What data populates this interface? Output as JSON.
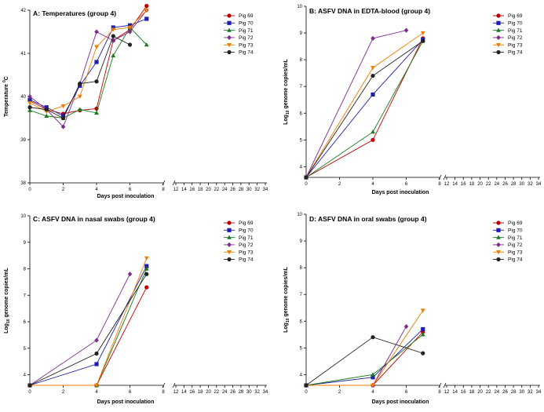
{
  "chart_data": [
    {
      "type": "line",
      "title": "A: Temperatures (group 4)",
      "xlabel": "Days post inoculation",
      "ylabel_main": "Temperature",
      "ylabel_unit": "°C",
      "ylim": [
        38,
        42
      ],
      "yticks": [
        "38",
        "39",
        "40",
        "41",
        "42"
      ],
      "xticks_left": [
        "0",
        "2",
        "4",
        "6",
        "8"
      ],
      "xticks_right": [
        "12",
        "14",
        "16",
        "18",
        "20",
        "22",
        "24",
        "26",
        "28",
        "30",
        "32",
        "34"
      ],
      "legend_position": "top-right",
      "series": [
        {
          "name": "Pig 69",
          "color": "#c00000",
          "marker": "circle",
          "x": [
            0,
            1,
            2,
            3,
            4,
            5,
            6,
            7
          ],
          "y": [
            39.9,
            39.7,
            39.6,
            39.68,
            39.72,
            41.3,
            41.55,
            42.1
          ]
        },
        {
          "name": "Pig 70",
          "color": "#1f1fa8",
          "marker": "square",
          "x": [
            0,
            1,
            2,
            3,
            4,
            5,
            6,
            7
          ],
          "y": [
            39.92,
            39.75,
            39.55,
            40.25,
            40.8,
            41.6,
            41.65,
            41.8
          ]
        },
        {
          "name": "Pig 71",
          "color": "#1a7a1a",
          "marker": "triangle-up",
          "x": [
            0,
            1,
            2,
            3,
            4,
            5,
            6,
            7
          ],
          "y": [
            39.68,
            39.55,
            39.5,
            39.7,
            39.62,
            40.95,
            41.6,
            41.2
          ]
        },
        {
          "name": "Pig 72",
          "color": "#7b2d8e",
          "marker": "diamond",
          "x": [
            0,
            1,
            2,
            3,
            4,
            5,
            6,
            7
          ],
          "y": [
            40.0,
            39.7,
            39.3,
            40.3,
            41.5,
            41.3,
            41.5,
            42.0
          ]
        },
        {
          "name": "Pig 73",
          "color": "#f07c00",
          "marker": "triangle-down",
          "x": [
            0,
            1,
            2,
            3,
            4,
            5,
            6,
            7
          ],
          "y": [
            39.85,
            39.65,
            39.78,
            40.0,
            41.15,
            41.55,
            41.6,
            42.0
          ]
        },
        {
          "name": "Pig 74",
          "color": "#222222",
          "marker": "circle",
          "x": [
            0,
            1,
            2,
            3,
            4,
            5,
            6
          ],
          "y": [
            39.75,
            39.7,
            39.5,
            40.3,
            40.35,
            41.4,
            41.2
          ]
        }
      ]
    },
    {
      "type": "line",
      "title": "B: ASFV DNA in EDTA-blood (group 4)",
      "xlabel": "Days post inoculation",
      "ylabel_main": "Log",
      "ylabel_sub": "10",
      "ylabel_rest": " genome copies/mL",
      "ylim": [
        3.6,
        10
      ],
      "yticks": [
        "4",
        "5",
        "6",
        "7",
        "8",
        "9",
        "10"
      ],
      "xticks_left": [
        "0",
        "2",
        "4",
        "6",
        "8"
      ],
      "xticks_right": [
        "12",
        "14",
        "16",
        "18",
        "20",
        "22",
        "24",
        "26",
        "28",
        "30",
        "32",
        "34"
      ],
      "legend_position": "top-right",
      "series": [
        {
          "name": "Pig 69",
          "color": "#c00000",
          "marker": "circle",
          "x": [
            0,
            4,
            7
          ],
          "y": [
            3.6,
            5.0,
            8.8
          ]
        },
        {
          "name": "Pig 70",
          "color": "#1f1fa8",
          "marker": "square",
          "x": [
            0,
            4,
            7
          ],
          "y": [
            3.6,
            6.7,
            8.75
          ]
        },
        {
          "name": "Pig 71",
          "color": "#1a7a1a",
          "marker": "triangle-up",
          "x": [
            0,
            4,
            7
          ],
          "y": [
            3.6,
            5.3,
            8.7
          ]
        },
        {
          "name": "Pig 72",
          "color": "#7b2d8e",
          "marker": "diamond",
          "x": [
            0,
            4,
            6
          ],
          "y": [
            3.6,
            8.8,
            9.1
          ]
        },
        {
          "name": "Pig 73",
          "color": "#f07c00",
          "marker": "triangle-down",
          "x": [
            0,
            4,
            7
          ],
          "y": [
            3.6,
            7.7,
            9.0
          ]
        },
        {
          "name": "Pig 74",
          "color": "#222222",
          "marker": "circle",
          "x": [
            0,
            4,
            7
          ],
          "y": [
            3.6,
            7.4,
            8.7
          ]
        }
      ]
    },
    {
      "type": "line",
      "title": "C: ASFV DNA in nasal swabs (group 4)",
      "xlabel": "Days post inoculation",
      "ylabel_main": "Log",
      "ylabel_sub": "10",
      "ylabel_rest": " genome copies/mL",
      "ylim": [
        3.6,
        10
      ],
      "yticks": [
        "4",
        "5",
        "6",
        "7",
        "8",
        "9",
        "10"
      ],
      "xticks_left": [
        "0",
        "2",
        "4",
        "6",
        "8"
      ],
      "xticks_right": [
        "12",
        "14",
        "16",
        "18",
        "20",
        "22",
        "24",
        "26",
        "28",
        "30",
        "32",
        "34"
      ],
      "legend_position": "top-right",
      "series": [
        {
          "name": "Pig 69",
          "color": "#c00000",
          "marker": "circle",
          "x": [
            0,
            4,
            7
          ],
          "y": [
            3.6,
            3.6,
            7.3
          ]
        },
        {
          "name": "Pig 70",
          "color": "#1f1fa8",
          "marker": "square",
          "x": [
            0,
            4,
            7
          ],
          "y": [
            3.6,
            4.4,
            8.1
          ]
        },
        {
          "name": "Pig 71",
          "color": "#1a7a1a",
          "marker": "triangle-up",
          "x": [
            0,
            4,
            7
          ],
          "y": [
            3.6,
            3.6,
            8.0
          ]
        },
        {
          "name": "Pig 72",
          "color": "#7b2d8e",
          "marker": "diamond",
          "x": [
            0,
            4,
            6
          ],
          "y": [
            3.6,
            5.3,
            7.8
          ]
        },
        {
          "name": "Pig 73",
          "color": "#f07c00",
          "marker": "triangle-down",
          "x": [
            0,
            4,
            7
          ],
          "y": [
            3.6,
            3.6,
            8.4
          ]
        },
        {
          "name": "Pig 74",
          "color": "#222222",
          "marker": "circle",
          "x": [
            0,
            4,
            7
          ],
          "y": [
            3.6,
            4.8,
            7.8
          ]
        }
      ]
    },
    {
      "type": "line",
      "title": "D: ASFV DNA in oral swabs (group 4)",
      "xlabel": "Days post inoculation",
      "ylabel_main": "Log",
      "ylabel_sub": "10",
      "ylabel_rest": " genome copies/mL",
      "ylim": [
        3.6,
        10
      ],
      "yticks": [
        "4",
        "5",
        "6",
        "7",
        "8",
        "9",
        "10"
      ],
      "xticks_left": [
        "0",
        "2",
        "4",
        "6",
        "8"
      ],
      "xticks_right": [
        "12",
        "14",
        "16",
        "18",
        "20",
        "22",
        "24",
        "26",
        "28",
        "30",
        "32",
        "34"
      ],
      "legend_position": "top-right",
      "series": [
        {
          "name": "Pig 69",
          "color": "#c00000",
          "marker": "circle",
          "x": [
            0,
            4,
            7
          ],
          "y": [
            3.6,
            3.6,
            5.6
          ]
        },
        {
          "name": "Pig 70",
          "color": "#1f1fa8",
          "marker": "square",
          "x": [
            0,
            4,
            7
          ],
          "y": [
            3.6,
            3.9,
            5.7
          ]
        },
        {
          "name": "Pig 71",
          "color": "#1a7a1a",
          "marker": "triangle-up",
          "x": [
            0,
            4,
            7
          ],
          "y": [
            3.6,
            4.0,
            5.5
          ]
        },
        {
          "name": "Pig 72",
          "color": "#7b2d8e",
          "marker": "diamond",
          "x": [
            0,
            4,
            6
          ],
          "y": [
            3.6,
            3.6,
            5.8
          ]
        },
        {
          "name": "Pig 73",
          "color": "#f07c00",
          "marker": "triangle-down",
          "x": [
            0,
            4,
            7
          ],
          "y": [
            3.6,
            3.6,
            6.4
          ]
        },
        {
          "name": "Pig 74",
          "color": "#222222",
          "marker": "circle",
          "x": [
            0,
            4,
            7
          ],
          "y": [
            3.6,
            5.4,
            4.8
          ]
        }
      ]
    }
  ]
}
